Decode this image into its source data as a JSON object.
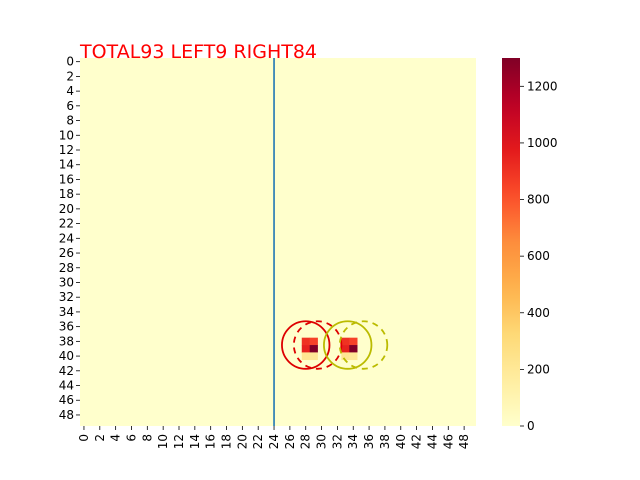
{
  "chart_data": {
    "type": "heatmap",
    "title": "TOTAL93  LEFT9 RIGHT84",
    "title_color": "#ff0000",
    "colormap": "YlOrRd",
    "grid_size": [
      50,
      50
    ],
    "x_ticks": [
      "0",
      "2",
      "4",
      "6",
      "8",
      "10",
      "12",
      "14",
      "16",
      "18",
      "20",
      "22",
      "24",
      "26",
      "28",
      "30",
      "32",
      "34",
      "36",
      "38",
      "40",
      "42",
      "44",
      "46",
      "48"
    ],
    "y_ticks": [
      "0",
      "2",
      "4",
      "6",
      "8",
      "10",
      "12",
      "14",
      "16",
      "18",
      "20",
      "22",
      "24",
      "26",
      "28",
      "30",
      "32",
      "34",
      "36",
      "38",
      "40",
      "42",
      "44",
      "46",
      "48"
    ],
    "colorbar": {
      "min": 0,
      "max": 1300,
      "ticks": [
        "0",
        "200",
        "400",
        "600",
        "800",
        "1000",
        "1200"
      ]
    },
    "background_value": 0,
    "cells": [
      {
        "row": 38,
        "col": 28,
        "value": 900
      },
      {
        "row": 38,
        "col": 29,
        "value": 850
      },
      {
        "row": 39,
        "col": 28,
        "value": 950
      },
      {
        "row": 39,
        "col": 29,
        "value": 1300
      },
      {
        "row": 40,
        "col": 28,
        "value": 220
      },
      {
        "row": 40,
        "col": 29,
        "value": 200
      },
      {
        "row": 38,
        "col": 33,
        "value": 900
      },
      {
        "row": 38,
        "col": 34,
        "value": 850
      },
      {
        "row": 39,
        "col": 33,
        "value": 950
      },
      {
        "row": 39,
        "col": 34,
        "value": 1300
      },
      {
        "row": 40,
        "col": 33,
        "value": 220
      },
      {
        "row": 40,
        "col": 34,
        "value": 200
      }
    ],
    "vertical_line": {
      "x": 24.5,
      "color": "#1f77b4"
    },
    "circles": [
      {
        "cx": 28.5,
        "cy": 39.0,
        "r": 3.0,
        "color": "#dd0000",
        "style": "solid"
      },
      {
        "cx": 30.0,
        "cy": 39.0,
        "r": 3.0,
        "color": "#dd0000",
        "style": "dashed"
      },
      {
        "cx": 33.8,
        "cy": 39.0,
        "r": 3.0,
        "color": "#bbbb00",
        "style": "solid"
      },
      {
        "cx": 35.8,
        "cy": 39.0,
        "r": 3.0,
        "color": "#bbbb00",
        "style": "dashed"
      }
    ]
  }
}
